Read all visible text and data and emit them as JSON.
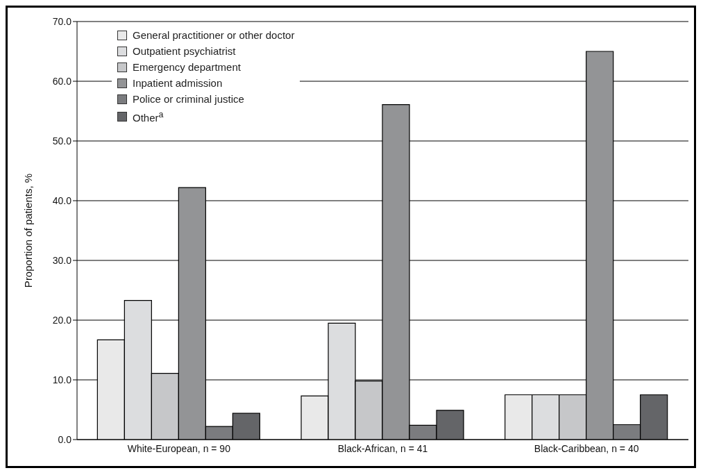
{
  "chart_data": {
    "type": "bar",
    "ylabel": "Proportion of patients, %",
    "categories": [
      "White-European, n = 90",
      "Black-African, n = 41",
      "Black-Caribbean, n = 40"
    ],
    "series": [
      {
        "name": "General practitioner or other doctor",
        "color": "#e9e9e9",
        "values": [
          16.7,
          7.3,
          7.5
        ]
      },
      {
        "name": "Outpatient psychiatrist",
        "color": "#dcdddf",
        "values": [
          23.3,
          19.5,
          7.5
        ]
      },
      {
        "name": "Emergency department",
        "color": "#c6c7c9",
        "values": [
          11.1,
          9.8,
          7.5
        ]
      },
      {
        "name": "Inpatient admission",
        "color": "#939496",
        "values": [
          42.2,
          56.1,
          65.0
        ]
      },
      {
        "name": "Police or criminal justice",
        "color": "#7b7c7f",
        "values": [
          2.2,
          2.4,
          2.5
        ]
      },
      {
        "name": "Other$^{a}$",
        "color": "#646568",
        "values": [
          4.4,
          4.9,
          7.5
        ]
      }
    ],
    "ylim": [
      0,
      70
    ],
    "yticks": [
      {
        "value": 0,
        "label": "0.0"
      },
      {
        "value": 10,
        "label": "10.0"
      },
      {
        "value": 20,
        "label": "20.0"
      },
      {
        "value": 30,
        "label": "30.0"
      },
      {
        "value": 40,
        "label": "40.0"
      },
      {
        "value": 50,
        "label": "50.0"
      },
      {
        "value": 60,
        "label": "60.0"
      },
      {
        "value": 70,
        "label": "70.0"
      }
    ],
    "grid": "y",
    "legend": "top left"
  }
}
